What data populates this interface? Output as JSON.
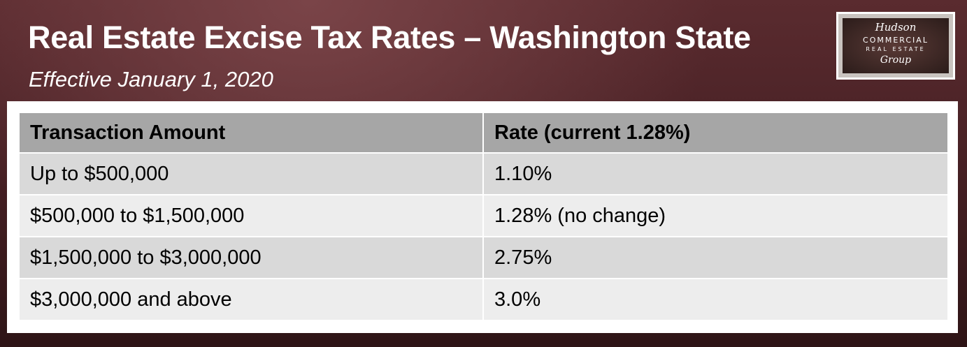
{
  "header": {
    "title": "Real Estate Excise Tax Rates – Washington State",
    "subtitle": "Effective January 1, 2020"
  },
  "logo": {
    "line1": "Hudson",
    "line2": "COMMERCIAL",
    "line3": "REAL ESTATE",
    "line4": "Group"
  },
  "table": {
    "headers": [
      "Transaction Amount",
      "Rate (current 1.28%)"
    ],
    "rows": [
      [
        "Up to $500,000",
        "1.10%"
      ],
      [
        "$500,000 to $1,500,000",
        "1.28% (no change)"
      ],
      [
        "$1,500,000 to $3,000,000",
        "2.75%"
      ],
      [
        "$3,000,000 and above",
        "3.0%"
      ]
    ]
  },
  "colors": {
    "background": "#4a2226",
    "header_row": "#a6a6a6",
    "row_dark": "#d9d9d9",
    "row_light": "#ededed"
  }
}
